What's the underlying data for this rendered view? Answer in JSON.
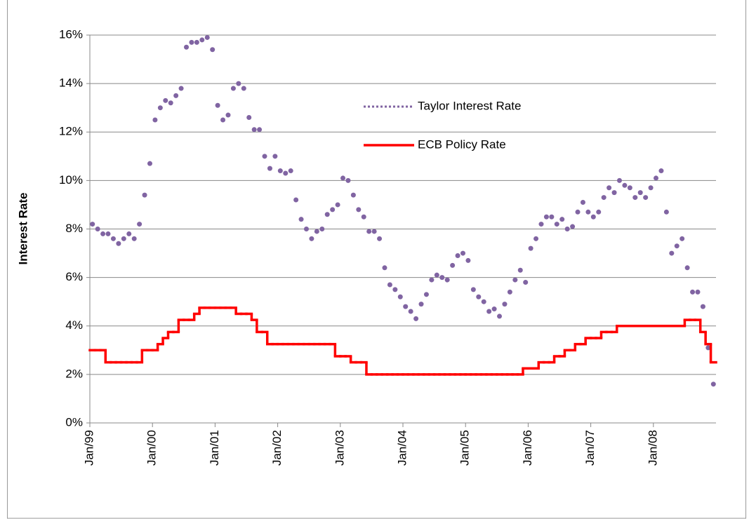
{
  "chart_data": {
    "type": "line",
    "ylabel": "Interest Rate",
    "categories": [
      "Jan/99",
      null,
      null,
      null,
      null,
      null,
      null,
      null,
      null,
      null,
      null,
      null,
      "Jan/00",
      null,
      null,
      null,
      null,
      null,
      null,
      null,
      null,
      null,
      null,
      null,
      "Jan/01",
      null,
      null,
      null,
      null,
      null,
      null,
      null,
      null,
      null,
      null,
      null,
      "Jan/02",
      null,
      null,
      null,
      null,
      null,
      null,
      null,
      null,
      null,
      null,
      null,
      "Jan/03",
      null,
      null,
      null,
      null,
      null,
      null,
      null,
      null,
      null,
      null,
      null,
      "Jan/04",
      null,
      null,
      null,
      null,
      null,
      null,
      null,
      null,
      null,
      null,
      null,
      "Jan/05",
      null,
      null,
      null,
      null,
      null,
      null,
      null,
      null,
      null,
      null,
      null,
      "Jan/06",
      null,
      null,
      null,
      null,
      null,
      null,
      null,
      null,
      null,
      null,
      null,
      "Jan/07",
      null,
      null,
      null,
      null,
      null,
      null,
      null,
      null,
      null,
      null,
      null,
      "Jan/08",
      null,
      null,
      null,
      null,
      null,
      null,
      null,
      null,
      null,
      null,
      null
    ],
    "series": [
      {
        "name": "Taylor Interest Rate",
        "color": "#8064a2",
        "style": "dotted",
        "values": [
          8.2,
          8.0,
          7.8,
          7.8,
          7.6,
          7.4,
          7.6,
          7.8,
          7.6,
          8.2,
          9.4,
          10.7,
          12.5,
          13.0,
          13.3,
          13.2,
          13.5,
          13.8,
          15.5,
          15.7,
          15.7,
          15.8,
          15.9,
          15.4,
          13.1,
          12.5,
          12.7,
          13.8,
          14.0,
          13.8,
          12.6,
          12.1,
          12.1,
          11.0,
          10.5,
          11.0,
          10.4,
          10.3,
          10.4,
          9.2,
          8.4,
          8.0,
          7.6,
          7.9,
          8.0,
          8.6,
          8.8,
          9.0,
          10.1,
          10.0,
          9.4,
          8.8,
          8.5,
          7.9,
          7.9,
          7.6,
          6.4,
          5.7,
          5.5,
          5.2,
          4.8,
          4.6,
          4.3,
          4.9,
          5.3,
          5.9,
          6.1,
          6.0,
          5.9,
          6.5,
          6.9,
          7.0,
          6.7,
          5.5,
          5.2,
          5.0,
          4.6,
          4.7,
          4.4,
          4.9,
          5.4,
          5.9,
          6.3,
          5.8,
          7.2,
          7.6,
          8.2,
          8.5,
          8.5,
          8.2,
          8.4,
          8.0,
          8.1,
          8.7,
          9.1,
          8.7,
          8.5,
          8.7,
          9.3,
          9.7,
          9.5,
          10.0,
          9.8,
          9.7,
          9.3,
          9.5,
          9.3,
          9.7,
          10.1,
          10.4,
          8.7,
          7.0,
          7.3,
          7.6,
          6.4,
          5.4,
          5.4,
          4.8,
          3.1,
          1.6
        ]
      },
      {
        "name": "ECB Policy Rate",
        "color": "#ff0000",
        "style": "step",
        "values": [
          3.0,
          3.0,
          3.0,
          2.5,
          2.5,
          2.5,
          2.5,
          2.5,
          2.5,
          2.5,
          3.0,
          3.0,
          3.0,
          3.25,
          3.5,
          3.75,
          3.75,
          4.25,
          4.25,
          4.25,
          4.5,
          4.75,
          4.75,
          4.75,
          4.75,
          4.75,
          4.75,
          4.75,
          4.5,
          4.5,
          4.5,
          4.25,
          3.75,
          3.75,
          3.25,
          3.25,
          3.25,
          3.25,
          3.25,
          3.25,
          3.25,
          3.25,
          3.25,
          3.25,
          3.25,
          3.25,
          3.25,
          2.75,
          2.75,
          2.75,
          2.5,
          2.5,
          2.5,
          2.0,
          2.0,
          2.0,
          2.0,
          2.0,
          2.0,
          2.0,
          2.0,
          2.0,
          2.0,
          2.0,
          2.0,
          2.0,
          2.0,
          2.0,
          2.0,
          2.0,
          2.0,
          2.0,
          2.0,
          2.0,
          2.0,
          2.0,
          2.0,
          2.0,
          2.0,
          2.0,
          2.0,
          2.0,
          2.0,
          2.25,
          2.25,
          2.25,
          2.5,
          2.5,
          2.5,
          2.75,
          2.75,
          3.0,
          3.0,
          3.25,
          3.25,
          3.5,
          3.5,
          3.5,
          3.75,
          3.75,
          3.75,
          4.0,
          4.0,
          4.0,
          4.0,
          4.0,
          4.0,
          4.0,
          4.0,
          4.0,
          4.0,
          4.0,
          4.0,
          4.0,
          4.25,
          4.25,
          4.25,
          3.75,
          3.25,
          2.5
        ]
      }
    ],
    "ylim": [
      0,
      16
    ],
    "yticks": [
      {
        "value": 0,
        "label": "0%"
      },
      {
        "value": 2,
        "label": "2%"
      },
      {
        "value": 4,
        "label": "4%"
      },
      {
        "value": 6,
        "label": "6%"
      },
      {
        "value": 8,
        "label": "8%"
      },
      {
        "value": 10,
        "label": "10%"
      },
      {
        "value": 12,
        "label": "12%"
      },
      {
        "value": 14,
        "label": "14%"
      },
      {
        "value": 16,
        "label": "16%"
      }
    ],
    "grid": true,
    "legend": "upper-center"
  }
}
